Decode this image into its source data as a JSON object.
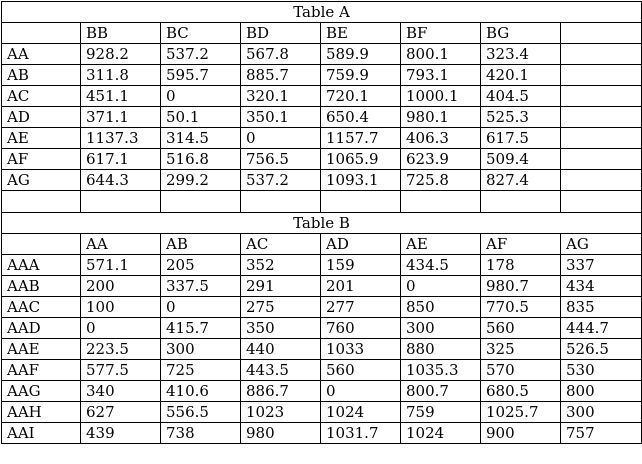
{
  "table_a": {
    "title": "Table A",
    "columns": [
      "BB",
      "BC",
      "BD",
      "BE",
      "BF",
      "BG",
      ""
    ],
    "rows": [
      {
        "label": "AA",
        "cells": [
          "928.2",
          "537.2",
          "567.8",
          "589.9",
          "800.1",
          "323.4",
          ""
        ]
      },
      {
        "label": "AB",
        "cells": [
          "311.8",
          "595.7",
          "885.7",
          "759.9",
          "793.1",
          "420.1",
          ""
        ]
      },
      {
        "label": "AC",
        "cells": [
          "451.1",
          "0",
          "320.1",
          "720.1",
          "1000.1",
          "404.5",
          ""
        ]
      },
      {
        "label": "AD",
        "cells": [
          "371.1",
          "50.1",
          "350.1",
          "650.4",
          "980.1",
          "525.3",
          ""
        ]
      },
      {
        "label": "AE",
        "cells": [
          "1137.3",
          "314.5",
          "0",
          "1157.7",
          "406.3",
          "617.5",
          ""
        ]
      },
      {
        "label": "AF",
        "cells": [
          "617.1",
          "516.8",
          "756.5",
          "1065.9",
          "623.9",
          "509.4",
          ""
        ]
      },
      {
        "label": "AG",
        "cells": [
          "644.3",
          "299.2",
          "537.2",
          "1093.1",
          "725.8",
          "827.4",
          ""
        ]
      }
    ]
  },
  "table_b": {
    "title": "Table B",
    "columns": [
      "AA",
      "AB",
      "AC",
      "AD",
      "AE",
      "AF",
      "AG"
    ],
    "rows": [
      {
        "label": "AAA",
        "cells": [
          "571.1",
          "205",
          "352",
          "159",
          "434.5",
          "178",
          "337"
        ]
      },
      {
        "label": "AAB",
        "cells": [
          "200",
          "337.5",
          "291",
          "201",
          "0",
          "980.7",
          "434"
        ]
      },
      {
        "label": "AAC",
        "cells": [
          "100",
          "0",
          "275",
          "277",
          "850",
          "770.5",
          "835"
        ]
      },
      {
        "label": "AAD",
        "cells": [
          "0",
          "415.7",
          "350",
          "760",
          "300",
          "560",
          "444.7"
        ]
      },
      {
        "label": "AAE",
        "cells": [
          "223.5",
          "300",
          "440",
          "1033",
          "880",
          "325",
          "526.5"
        ]
      },
      {
        "label": "AAF",
        "cells": [
          "577.5",
          "725",
          "443.5",
          "560",
          "1035.3",
          "570",
          "530"
        ]
      },
      {
        "label": "AAG",
        "cells": [
          "340",
          "410.6",
          "886.7",
          "0",
          "800.7",
          "680.5",
          "800"
        ]
      },
      {
        "label": "AAH",
        "cells": [
          "627",
          "556.5",
          "1023",
          "1024",
          "759",
          "1025.7",
          "300"
        ]
      },
      {
        "label": "AAI",
        "cells": [
          "439",
          "738",
          "980",
          "1031.7",
          "1024",
          "900",
          "757"
        ]
      }
    ]
  }
}
